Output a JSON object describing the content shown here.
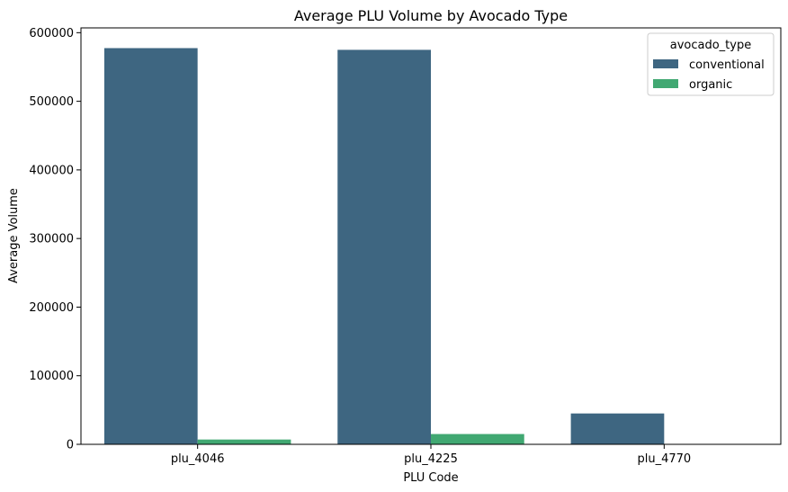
{
  "chart_data": {
    "type": "bar",
    "title": "Average PLU Volume by Avocado Type",
    "xlabel": "PLU Code",
    "ylabel": "Average Volume",
    "categories": [
      "plu_4046",
      "plu_4225",
      "plu_4770"
    ],
    "series": [
      {
        "name": "conventional",
        "color": "#3e6681",
        "values": [
          577500,
          575000,
          45000
        ]
      },
      {
        "name": "organic",
        "color": "#41a872",
        "values": [
          7000,
          15000,
          500
        ]
      }
    ],
    "ylim": [
      0,
      607000
    ],
    "yticks": [
      0,
      100000,
      200000,
      300000,
      400000,
      500000,
      600000
    ],
    "ytick_labels": [
      "0",
      "100000",
      "200000",
      "300000",
      "400000",
      "500000",
      "600000"
    ],
    "legend": {
      "title": "avocado_type",
      "placement": "top-right"
    },
    "grid": false
  }
}
